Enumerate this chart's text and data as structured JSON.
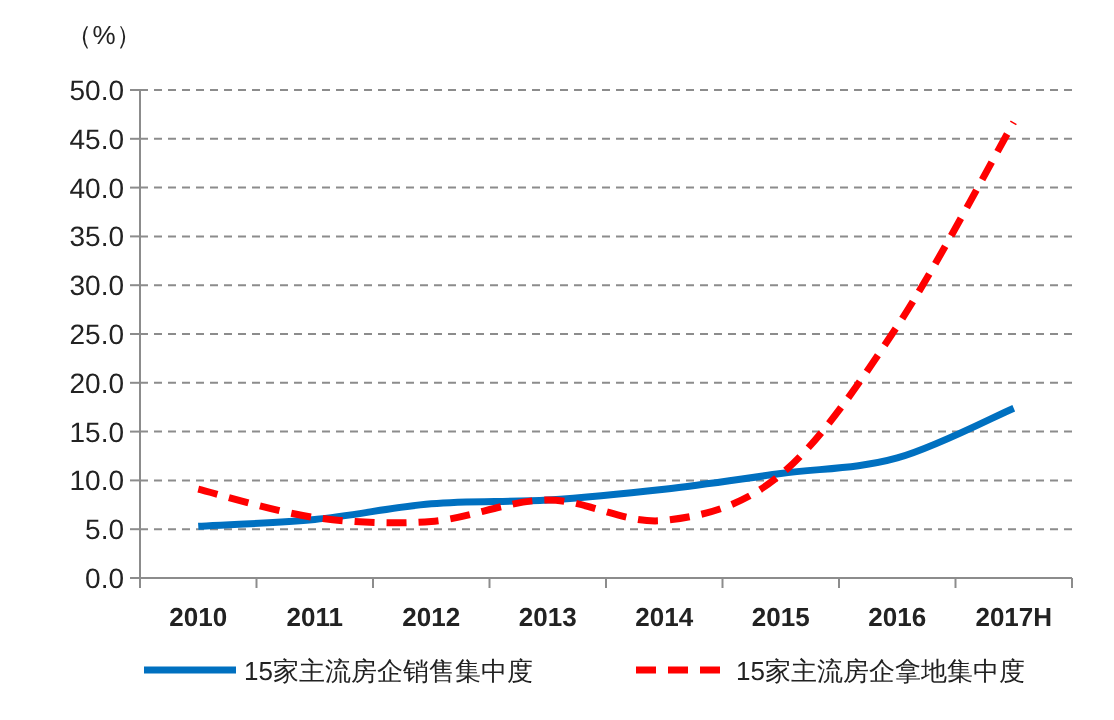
{
  "chart_data": {
    "type": "line",
    "ylabel": "（%）",
    "categories": [
      "2010",
      "2011",
      "2012",
      "2013",
      "2014",
      "2015",
      "2016",
      "2017H"
    ],
    "series": [
      {
        "name": "15家主流房企销售集中度",
        "color": "#0070c0",
        "line_style": "solid",
        "values": [
          5.3,
          6.0,
          7.6,
          8.0,
          9.1,
          10.7,
          12.3,
          17.4
        ]
      },
      {
        "name": "15家主流房企拿地集中度",
        "color": "#ff0000",
        "line_style": "dashed",
        "values": [
          9.1,
          6.2,
          5.8,
          8.0,
          5.9,
          10.6,
          25.8,
          46.7
        ]
      }
    ],
    "ylim": [
      0,
      50
    ],
    "yticks": [
      {
        "value": 0,
        "label": "0.0"
      },
      {
        "value": 5,
        "label": "5.0"
      },
      {
        "value": 10,
        "label": "10.0"
      },
      {
        "value": 15,
        "label": "15.0"
      },
      {
        "value": 20,
        "label": "20.0"
      },
      {
        "value": 25,
        "label": "25.0"
      },
      {
        "value": 30,
        "label": "30.0"
      },
      {
        "value": 35,
        "label": "35.0"
      },
      {
        "value": 40,
        "label": "40.0"
      },
      {
        "value": 45,
        "label": "45.0"
      },
      {
        "value": 50,
        "label": "50.0"
      }
    ],
    "grid": "y",
    "legend": "bottom",
    "marker": "none"
  }
}
